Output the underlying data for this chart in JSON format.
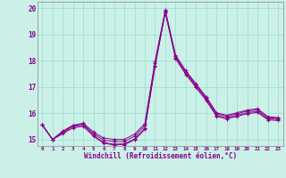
{
  "xlabel": "Windchill (Refroidissement éolien,°C)",
  "bg_color": "#caf0e8",
  "line_color": "#880088",
  "grid_color": "#99ddcc",
  "xlim": [
    -0.5,
    23.5
  ],
  "ylim": [
    14.75,
    20.25
  ],
  "yticks": [
    15,
    16,
    17,
    18,
    19,
    20
  ],
  "xticks": [
    0,
    1,
    2,
    3,
    4,
    5,
    6,
    7,
    8,
    9,
    10,
    11,
    12,
    13,
    14,
    15,
    16,
    17,
    18,
    19,
    20,
    21,
    22,
    23
  ],
  "series": [
    [
      15.55,
      15.0,
      15.25,
      15.5,
      15.55,
      15.15,
      14.88,
      14.82,
      14.83,
      15.02,
      15.42,
      17.82,
      19.87,
      18.12,
      17.52,
      17.02,
      16.52,
      15.92,
      15.82,
      15.92,
      16.02,
      16.07,
      15.79,
      15.76
    ],
    [
      15.55,
      15.0,
      15.3,
      15.52,
      15.58,
      15.22,
      14.97,
      14.92,
      14.92,
      15.12,
      15.52,
      17.92,
      19.9,
      18.18,
      17.58,
      17.08,
      16.58,
      15.98,
      15.88,
      15.98,
      16.08,
      16.13,
      15.84,
      15.8
    ],
    [
      15.55,
      15.0,
      15.32,
      15.54,
      15.62,
      15.28,
      15.05,
      15.0,
      15.0,
      15.2,
      15.6,
      17.97,
      19.93,
      18.22,
      17.62,
      17.12,
      16.62,
      16.02,
      15.92,
      16.02,
      16.12,
      16.17,
      15.87,
      15.83
    ],
    [
      15.55,
      15.0,
      15.22,
      15.44,
      15.5,
      15.12,
      14.85,
      14.79,
      14.8,
      14.98,
      15.38,
      17.78,
      19.85,
      18.08,
      17.48,
      16.98,
      16.48,
      15.88,
      15.78,
      15.88,
      15.98,
      16.03,
      15.75,
      15.72
    ]
  ]
}
